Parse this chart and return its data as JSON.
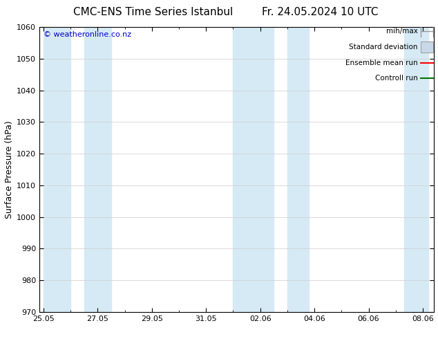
{
  "title_left": "CMC-ENS Time Series Istanbul",
  "title_right": "Fr. 24.05.2024 10 UTC",
  "ylabel": "Surface Pressure (hPa)",
  "ylim": [
    970,
    1060
  ],
  "yticks": [
    970,
    980,
    990,
    1000,
    1010,
    1020,
    1030,
    1040,
    1050,
    1060
  ],
  "watermark": "© weatheronline.co.nz",
  "watermark_color": "#0000cc",
  "background_color": "#ffffff",
  "shaded_band_color": "#d6eaf5",
  "legend_items": [
    {
      "label": "min/max",
      "color": "#aaaaaa",
      "type": "errorbar"
    },
    {
      "label": "Standard deviation",
      "color": "#c8d8e8",
      "type": "box"
    },
    {
      "label": "Ensemble mean run",
      "color": "#ff0000",
      "type": "line"
    },
    {
      "label": "Controll run",
      "color": "#007700",
      "type": "line"
    }
  ],
  "shaded_columns": [
    {
      "start": 0.0,
      "end": 1.0
    },
    {
      "start": 1.5,
      "end": 2.5
    },
    {
      "start": 7.0,
      "end": 8.5
    },
    {
      "start": 9.0,
      "end": 9.8
    },
    {
      "start": 13.3,
      "end": 14.2
    }
  ],
  "x_tick_labels": [
    "25.05",
    "27.05",
    "29.05",
    "31.05",
    "02.06",
    "04.06",
    "06.06",
    "08.06"
  ],
  "x_tick_positions": [
    0,
    2,
    4,
    6,
    8,
    10,
    12,
    14
  ],
  "xlim": [
    -0.15,
    14.4
  ],
  "grid_color": "#cccccc",
  "tick_color": "#000000",
  "spine_color": "#000000",
  "title_fontsize": 11,
  "ylabel_fontsize": 9,
  "tick_labelsize": 8,
  "watermark_fontsize": 8,
  "legend_fontsize": 7.5
}
